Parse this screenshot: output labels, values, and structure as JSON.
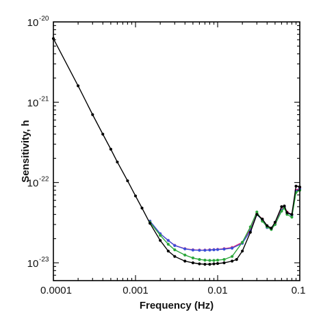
{
  "chart_data": {
    "type": "line",
    "title": "",
    "xlabel": "Frequency (Hz)",
    "ylabel": "Sensitivity, h",
    "x_scale": "log",
    "y_scale": "log",
    "xlim": [
      0.0001,
      0.1
    ],
    "ylim": [
      6e-24,
      1e-20
    ],
    "grid": false,
    "legend": "none",
    "x_ticks": [
      {
        "value": 0.0001,
        "label": "0.0001"
      },
      {
        "value": 0.001,
        "label": "0.001"
      },
      {
        "value": 0.01,
        "label": "0.01"
      },
      {
        "value": 0.1,
        "label": "0.1"
      }
    ],
    "y_ticks": [
      {
        "value": 1e-20,
        "base": "10",
        "exponent": "-20"
      },
      {
        "value": 1e-21,
        "base": "10",
        "exponent": "-21"
      },
      {
        "value": 1e-22,
        "base": "10",
        "exponent": "-22"
      },
      {
        "value": 1e-23,
        "base": "10",
        "exponent": "-23"
      }
    ],
    "series": [
      {
        "color": "#e8287a",
        "x": [
          0.0015,
          0.002,
          0.0025,
          0.003,
          0.004,
          0.005,
          0.006,
          0.007,
          0.008,
          0.009,
          0.01,
          0.012,
          0.015,
          0.02,
          0.025,
          0.03,
          0.035,
          0.04,
          0.045,
          0.05,
          0.06,
          0.065,
          0.07,
          0.08,
          0.09,
          0.1
        ],
        "y": [
          3.3e-23,
          2.3e-23,
          1.9e-23,
          1.65e-23,
          1.5e-23,
          1.45e-23,
          1.44e-23,
          1.44e-23,
          1.45e-23,
          1.46e-23,
          1.47e-23,
          1.5e-23,
          1.55e-23,
          1.8e-23,
          2.6e-23,
          4.1e-23,
          3.5e-23,
          2.8e-23,
          2.7e-23,
          3.1e-23,
          4.6e-23,
          5e-23,
          4.3e-23,
          4e-23,
          8e-23,
          8.5e-23
        ]
      },
      {
        "color": "#3a4fd8",
        "x": [
          0.0015,
          0.002,
          0.0025,
          0.003,
          0.004,
          0.005,
          0.006,
          0.007,
          0.008,
          0.009,
          0.01,
          0.012,
          0.015,
          0.02,
          0.025,
          0.03,
          0.035,
          0.04,
          0.045,
          0.05,
          0.06,
          0.065,
          0.07,
          0.08,
          0.09,
          0.1
        ],
        "y": [
          3.3e-23,
          2.3e-23,
          1.9e-23,
          1.64e-23,
          1.49e-23,
          1.44e-23,
          1.43e-23,
          1.43e-23,
          1.44e-23,
          1.45e-23,
          1.46e-23,
          1.48e-23,
          1.52e-23,
          1.75e-23,
          2.5e-23,
          4e-23,
          3.4e-23,
          2.75e-23,
          2.65e-23,
          3e-23,
          4.5e-23,
          4.9e-23,
          4.2e-23,
          3.9e-23,
          7.8e-23,
          8.3e-23
        ]
      },
      {
        "color": "#2aa63a",
        "x": [
          0.0015,
          0.002,
          0.0025,
          0.003,
          0.004,
          0.005,
          0.006,
          0.007,
          0.008,
          0.009,
          0.01,
          0.012,
          0.015,
          0.02,
          0.025,
          0.03,
          0.035,
          0.04,
          0.045,
          0.05,
          0.06,
          0.065,
          0.07,
          0.08,
          0.09,
          0.1
        ],
        "y": [
          3.2e-23,
          2.2e-23,
          1.7e-23,
          1.45e-23,
          1.25e-23,
          1.15e-23,
          1.1e-23,
          1.08e-23,
          1.07e-23,
          1.07e-23,
          1.08e-23,
          1.1e-23,
          1.2e-23,
          1.8e-23,
          2.8e-23,
          4.3e-23,
          3.3e-23,
          2.8e-23,
          2.6e-23,
          3e-23,
          4.4e-23,
          4.8e-23,
          4e-23,
          3.7e-23,
          7.5e-23,
          8e-23
        ]
      },
      {
        "color": "#000000",
        "x": [
          0.0001,
          0.0002,
          0.0003,
          0.0004,
          0.0005,
          0.0006,
          0.0008,
          0.001,
          0.0012,
          0.0015,
          0.002,
          0.0025,
          0.003,
          0.004,
          0.005,
          0.006,
          0.007,
          0.008,
          0.009,
          0.01,
          0.012,
          0.015,
          0.017,
          0.02,
          0.025,
          0.03,
          0.035,
          0.04,
          0.045,
          0.05,
          0.06,
          0.065,
          0.07,
          0.08,
          0.09,
          0.1
        ],
        "y": [
          6.2e-21,
          1.6e-21,
          7e-22,
          4e-22,
          2.6e-22,
          1.8e-22,
          1.05e-22,
          6.8e-23,
          4.8e-23,
          3.1e-23,
          1.9e-23,
          1.4e-23,
          1.2e-23,
          1.05e-23,
          1e-23,
          9.7e-24,
          9.6e-24,
          9.6e-24,
          9.7e-24,
          9.8e-24,
          1e-23,
          1.05e-23,
          1.1e-23,
          1.4e-23,
          2.4e-23,
          4e-23,
          3.5e-23,
          2.9e-23,
          2.7e-23,
          3.2e-23,
          5e-23,
          5.1e-23,
          4.2e-23,
          4e-23,
          9e-23,
          8.8e-23
        ]
      }
    ]
  }
}
